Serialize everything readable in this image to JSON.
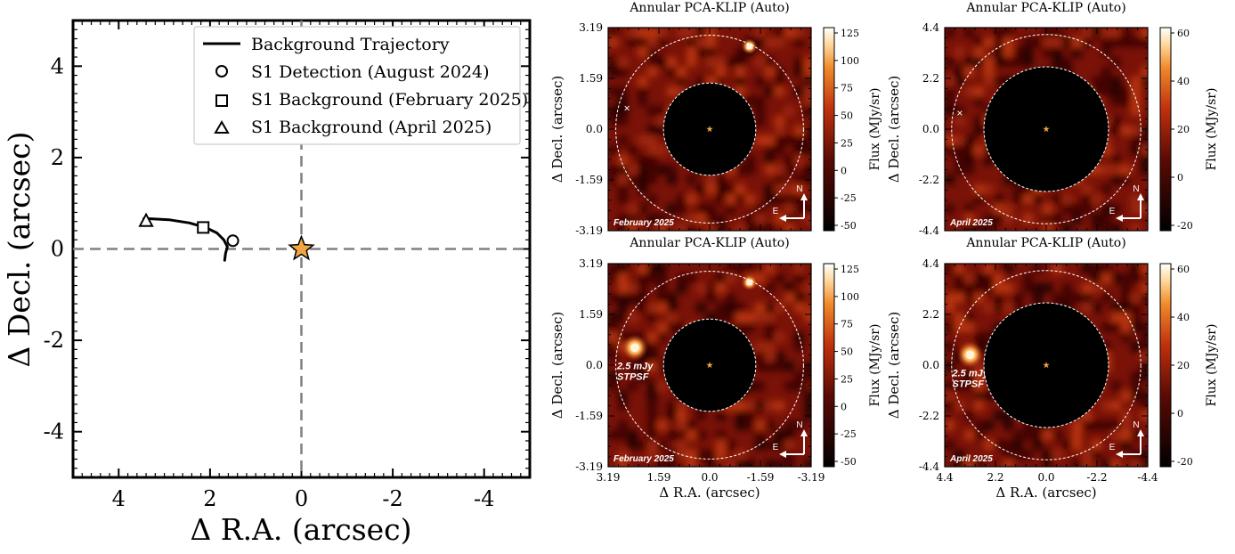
{
  "chart_data": [
    {
      "type": "line",
      "xlabel": "Δ R.A. (arcsec)",
      "ylabel": "Δ Decl. (arcsec)",
      "xlim": [
        5,
        -5
      ],
      "ylim": [
        -5,
        5
      ],
      "xticks": [
        4,
        2,
        0,
        -2,
        -4
      ],
      "xtick_labels": [
        "4",
        "2",
        "0",
        "-2",
        "-4"
      ],
      "yticks": [
        4,
        2,
        0,
        -2,
        -4
      ],
      "ytick_labels": [
        "4",
        "2",
        "0",
        "-2",
        "-4"
      ],
      "legend": {
        "placement": "top-right",
        "entries": [
          "Background Trajectory",
          "S1 Detection (August 2024)",
          "S1 Background (February 2025)",
          "S1 Background (April 2025)"
        ]
      },
      "series": [
        {
          "name": "Background Trajectory",
          "x": [
            1.68,
            1.66,
            1.62,
            1.7,
            1.85,
            2.1,
            2.45,
            2.9,
            3.3,
            3.45
          ],
          "y": [
            -0.25,
            -0.1,
            0.05,
            0.2,
            0.35,
            0.47,
            0.57,
            0.64,
            0.66,
            0.66
          ]
        },
        {
          "name": "S1 Detection (August 2024)",
          "marker": "circle",
          "x": [
            1.5
          ],
          "y": [
            0.18
          ]
        },
        {
          "name": "S1 Background (February 2025)",
          "marker": "square",
          "x": [
            2.15
          ],
          "y": [
            0.47
          ]
        },
        {
          "name": "S1 Background (April 2025)",
          "marker": "triangle",
          "x": [
            3.4
          ],
          "y": [
            0.62
          ]
        }
      ],
      "host_star": {
        "x": 0,
        "y": 0,
        "color": "#f2a541"
      },
      "reference_lines": {
        "x": 0,
        "y": 0,
        "style": "dashed",
        "color": "#808080"
      }
    }
  ],
  "panels": [
    {
      "title": "Annular PCA-KLIP (Auto)",
      "epoch": "February 2025",
      "yticks": [
        "3.19",
        "1.59",
        "0.0",
        "-1.59",
        "-3.19"
      ],
      "ylabel": "Δ Decl. (arcsec)",
      "cbar_ticks": [
        "125",
        "100",
        "75",
        "50",
        "25",
        "0",
        "-25",
        "-50"
      ],
      "cbar_label": "Flux (MJy/sr)",
      "marker": "×",
      "extent": 3.19,
      "inner_r": 1.45,
      "outer_r": 2.95,
      "bright_source": {
        "x": -1.25,
        "y": 2.6
      },
      "injection": null
    },
    {
      "title": "Annular PCA-KLIP (Auto)",
      "epoch": "April 2025",
      "yticks": [
        "4.4",
        "2.2",
        "0.0",
        "-2.2",
        "-4.4"
      ],
      "ylabel": "Δ Decl. (arcsec)",
      "cbar_ticks": [
        "60",
        "40",
        "20",
        "0",
        "-20"
      ],
      "cbar_label": "Flux (MJy/sr)",
      "marker": "×",
      "extent": 4.4,
      "inner_r": 2.7,
      "outer_r": 4.1,
      "bright_source": null,
      "injection": null
    },
    {
      "title": "Annular PCA-KLIP (Auto)",
      "epoch": "February 2025",
      "yticks": [
        "3.19",
        "1.59",
        "0.0",
        "-1.59",
        "-3.19"
      ],
      "ylabel": "Δ Decl. (arcsec)",
      "xticks": [
        "3.19",
        "1.59",
        "0.0",
        "-1.59",
        "-3.19"
      ],
      "xlabel": "Δ R.A. (arcsec)",
      "cbar_ticks": [
        "125",
        "100",
        "75",
        "50",
        "25",
        "0",
        "-25",
        "-50"
      ],
      "cbar_label": "Flux (MJy/sr)",
      "marker": null,
      "extent": 3.19,
      "inner_r": 1.45,
      "outer_r": 2.95,
      "bright_source": {
        "x": -1.25,
        "y": 2.6
      },
      "injection": {
        "label_line1": "2.5 mJy",
        "label_line2": "STPSF",
        "x": 2.35,
        "y": 0.55
      }
    },
    {
      "title": "Annular PCA-KLIP (Auto)",
      "epoch": "April 2025",
      "yticks": [
        "4.4",
        "2.2",
        "0.0",
        "-2.2",
        "-4.4"
      ],
      "ylabel": "Δ Decl. (arcsec)",
      "xticks": [
        "4.4",
        "2.2",
        "0.0",
        "-2.2",
        "-4.4"
      ],
      "xlabel": "Δ R.A. (arcsec)",
      "cbar_ticks": [
        "60",
        "40",
        "20",
        "0",
        "-20"
      ],
      "cbar_label": "Flux (MJy/sr)",
      "marker": null,
      "extent": 4.4,
      "inner_r": 2.7,
      "outer_r": 4.1,
      "bright_source": null,
      "injection": {
        "label_line1": "2.5 mJy",
        "label_line2": "STPSF",
        "x": 3.3,
        "y": 0.45
      }
    }
  ],
  "compass": {
    "north": "N",
    "east": "E"
  },
  "colors": {
    "map_background": "#7a1208",
    "occulted": "#000000",
    "star": "#f2a541",
    "ring": "#ffffff"
  }
}
